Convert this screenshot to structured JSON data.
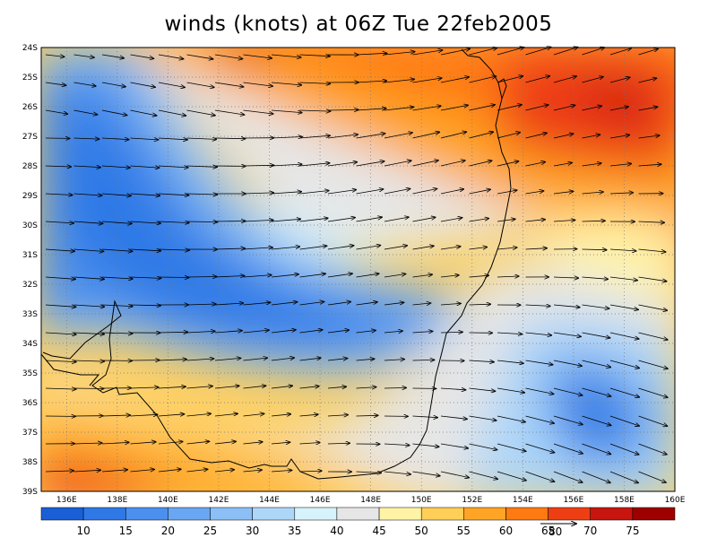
{
  "title": "winds (knots) at 06Z Tue 22feb2005",
  "map": {
    "lon_ticks": [
      "136E",
      "138E",
      "140E",
      "142E",
      "144E",
      "146E",
      "148E",
      "150E",
      "152E",
      "154E",
      "156E",
      "158E",
      "160E"
    ],
    "lat_ticks": [
      "24S",
      "25S",
      "26S",
      "27S",
      "28S",
      "29S",
      "30S",
      "31S",
      "32S",
      "33S",
      "34S",
      "35S",
      "36S",
      "37S",
      "38S",
      "39S"
    ],
    "lon_range": [
      135,
      160
    ],
    "lat_range": [
      -39,
      -24
    ],
    "grid": "dotted",
    "field": "wind speed (knots) with wind direction arrows",
    "vector_reference": {
      "label": "80",
      "value": 80
    }
  },
  "colorbar": {
    "labels": [
      "10",
      "15",
      "20",
      "25",
      "30",
      "35",
      "40",
      "45",
      "50",
      "55",
      "60",
      "65",
      "70",
      "75"
    ],
    "colors": [
      "#1a5fd6",
      "#2f79e6",
      "#4b90ee",
      "#6aa7f2",
      "#8bbff5",
      "#aed6f8",
      "#d6f2fa",
      "#e6e6e6",
      "#fff3a6",
      "#ffcf57",
      "#ffa424",
      "#ff7a12",
      "#ee3e13",
      "#c8150f",
      "#9e0000"
    ]
  }
}
